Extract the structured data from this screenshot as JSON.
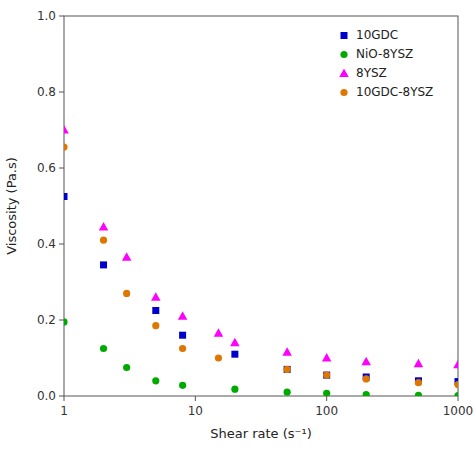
{
  "chart_data": {
    "type": "scatter",
    "xlabel": "Shear rate (s⁻¹)",
    "ylabel": "Viscosity (Pa.s)",
    "log": "x",
    "xlim": [
      1,
      1000
    ],
    "ylim": [
      0,
      1.0
    ],
    "xticks": [
      1,
      10,
      100,
      1000
    ],
    "yticks": [
      {
        "value": 0.0,
        "label": "0.0"
      },
      0.2,
      0.4,
      0.6,
      0.8,
      {
        "value": 1.0,
        "label": "1.0"
      }
    ],
    "legend": "upper right",
    "series": [
      {
        "name": "10GDC",
        "color": "#0000cc",
        "marker": "square",
        "x": [
          1,
          2,
          5,
          8,
          20,
          50,
          100,
          200,
          500,
          1000
        ],
        "values": [
          0.525,
          0.345,
          0.225,
          0.16,
          0.11,
          0.07,
          0.055,
          0.05,
          0.04,
          0.038
        ]
      },
      {
        "name": "NiO-8YSZ",
        "color": "#00aa00",
        "marker": "circle",
        "x": [
          1,
          2,
          3,
          5,
          8,
          20,
          50,
          100,
          200,
          500,
          1000
        ],
        "values": [
          0.195,
          0.125,
          0.075,
          0.04,
          0.028,
          0.018,
          0.01,
          0.007,
          0.004,
          0.002,
          0.001
        ]
      },
      {
        "name": "8YSZ",
        "color": "#ff00ff",
        "marker": "triangle",
        "x": [
          1,
          2,
          3,
          5,
          8,
          15,
          20,
          50,
          100,
          200,
          500,
          1000
        ],
        "values": [
          0.7,
          0.445,
          0.365,
          0.26,
          0.21,
          0.165,
          0.14,
          0.115,
          0.1,
          0.09,
          0.085,
          0.082
        ]
      },
      {
        "name": "10GDC-8YSZ",
        "color": "#dd7700",
        "marker": "circle",
        "x": [
          1,
          2,
          3,
          5,
          8,
          15,
          50,
          100,
          200,
          500,
          1000
        ],
        "values": [
          0.655,
          0.41,
          0.27,
          0.185,
          0.125,
          0.1,
          0.07,
          0.055,
          0.045,
          0.035,
          0.03
        ]
      }
    ]
  }
}
